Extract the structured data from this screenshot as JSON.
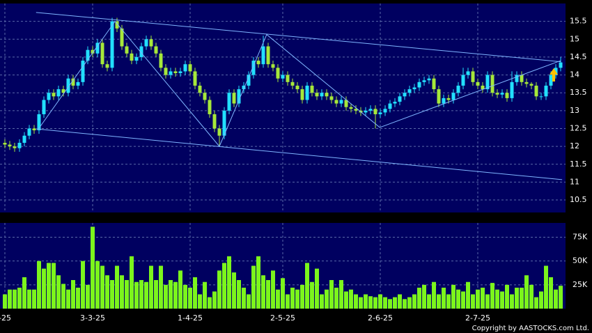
{
  "chart_data": [
    {
      "type": "candlestick",
      "ylim": [
        10.15,
        16.0
      ],
      "yticks": [
        10.5,
        11,
        11.5,
        12,
        12.5,
        13,
        13.5,
        14,
        14.5,
        15,
        15.5
      ],
      "xlim": [
        -1,
        115
      ],
      "grid": true,
      "up_color": "#22e0ff",
      "down_color": "#a6e83a",
      "line_color": "#7fb6ff",
      "open": [
        12.1,
        12.05,
        12.0,
        11.95,
        12.1,
        12.3,
        12.5,
        12.45,
        12.9,
        13.3,
        13.5,
        13.4,
        13.6,
        13.5,
        13.9,
        13.7,
        13.8,
        14.4,
        14.7,
        14.6,
        14.9,
        14.3,
        14.2,
        15.5,
        15.3,
        14.8,
        14.6,
        14.4,
        14.5,
        14.8,
        15.0,
        14.8,
        14.6,
        14.2,
        14.0,
        14.1,
        14.05,
        14.1,
        14.3,
        14.1,
        13.7,
        13.5,
        13.3,
        12.9,
        12.5,
        12.3,
        13.0,
        13.5,
        13.2,
        13.6,
        13.7,
        14.0,
        14.4,
        14.3,
        14.8,
        14.3,
        14.2,
        13.9,
        14.0,
        13.8,
        13.7,
        13.6,
        13.3,
        13.7,
        13.5,
        13.4,
        13.5,
        13.4,
        13.3,
        13.2,
        13.3,
        13.1,
        13.05,
        13.0,
        12.95,
        13.0,
        13.05,
        12.9,
        12.95,
        13.05,
        13.2,
        13.25,
        13.4,
        13.5,
        13.6,
        13.65,
        13.8,
        13.85,
        13.9,
        13.6,
        13.2,
        13.35,
        13.3,
        13.5,
        13.7,
        14.0,
        14.1,
        13.8,
        13.7,
        13.6,
        14.0,
        13.5,
        13.45,
        13.5,
        13.35,
        13.8,
        14.0,
        13.8,
        13.75,
        13.7,
        13.4,
        13.4,
        13.7,
        14.0,
        14.2
      ],
      "high": [
        12.2,
        12.15,
        12.1,
        12.2,
        12.4,
        12.6,
        12.6,
        13.0,
        13.4,
        13.6,
        13.6,
        13.7,
        13.7,
        14.0,
        14.0,
        13.9,
        14.5,
        14.8,
        14.8,
        15.0,
        15.0,
        14.4,
        15.6,
        15.6,
        15.4,
        14.9,
        14.7,
        14.6,
        14.9,
        15.1,
        15.1,
        14.9,
        14.7,
        14.3,
        14.2,
        14.2,
        14.2,
        14.4,
        14.4,
        14.2,
        13.8,
        13.6,
        13.4,
        13.0,
        12.6,
        13.1,
        13.6,
        13.6,
        13.7,
        13.8,
        14.1,
        14.5,
        14.5,
        15.1,
        14.9,
        14.4,
        14.3,
        14.1,
        14.1,
        13.9,
        13.8,
        13.7,
        13.8,
        13.8,
        13.6,
        13.6,
        13.6,
        13.5,
        13.4,
        13.4,
        13.4,
        13.2,
        13.15,
        13.1,
        13.1,
        13.15,
        13.15,
        13.05,
        13.15,
        13.3,
        13.35,
        13.5,
        13.6,
        13.7,
        13.75,
        13.9,
        13.95,
        14.0,
        14.0,
        13.7,
        13.45,
        13.45,
        13.6,
        13.8,
        14.2,
        14.2,
        14.2,
        13.9,
        13.8,
        14.1,
        14.1,
        13.6,
        13.6,
        13.6,
        14.1,
        14.1,
        14.1,
        13.9,
        13.8,
        13.8,
        13.5,
        13.8,
        14.1,
        14.3,
        14.5
      ],
      "low": [
        11.95,
        11.9,
        11.85,
        11.85,
        12.0,
        12.2,
        12.35,
        12.35,
        12.8,
        13.2,
        13.3,
        13.3,
        13.4,
        13.4,
        13.6,
        13.6,
        13.7,
        14.3,
        14.5,
        14.5,
        14.2,
        14.1,
        14.1,
        15.2,
        14.7,
        14.5,
        14.3,
        14.3,
        14.4,
        14.7,
        14.7,
        14.5,
        14.1,
        13.9,
        13.9,
        13.95,
        13.95,
        14.0,
        14.0,
        13.6,
        13.4,
        13.2,
        12.8,
        12.4,
        12.0,
        12.2,
        12.9,
        13.1,
        13.1,
        13.5,
        13.6,
        13.9,
        14.2,
        14.2,
        14.2,
        14.1,
        13.8,
        13.8,
        13.7,
        13.6,
        13.5,
        13.2,
        13.2,
        13.4,
        13.3,
        13.3,
        13.3,
        13.2,
        13.1,
        13.1,
        13.0,
        12.95,
        12.9,
        12.85,
        12.85,
        12.9,
        12.5,
        12.8,
        12.85,
        12.95,
        13.1,
        13.15,
        13.3,
        13.4,
        13.5,
        13.55,
        13.7,
        13.75,
        13.5,
        13.1,
        13.1,
        13.2,
        13.2,
        13.4,
        13.6,
        13.9,
        13.7,
        13.6,
        13.5,
        13.5,
        13.4,
        13.35,
        13.35,
        13.25,
        13.25,
        13.7,
        13.7,
        13.65,
        13.6,
        13.3,
        13.3,
        13.3,
        13.6,
        13.9,
        14.1
      ],
      "close": [
        12.05,
        12.0,
        11.95,
        12.1,
        12.3,
        12.5,
        12.45,
        12.9,
        13.3,
        13.5,
        13.4,
        13.6,
        13.5,
        13.9,
        13.7,
        13.8,
        14.4,
        14.7,
        14.6,
        14.9,
        14.3,
        14.2,
        15.5,
        15.3,
        14.8,
        14.6,
        14.4,
        14.5,
        14.8,
        15.0,
        14.8,
        14.6,
        14.2,
        14.0,
        14.1,
        14.05,
        14.1,
        14.3,
        14.1,
        13.7,
        13.5,
        13.3,
        12.9,
        12.5,
        12.3,
        13.0,
        13.5,
        13.2,
        13.6,
        13.7,
        14.0,
        14.4,
        14.3,
        14.8,
        14.3,
        14.2,
        13.9,
        14.0,
        13.8,
        13.7,
        13.6,
        13.3,
        13.7,
        13.5,
        13.4,
        13.5,
        13.4,
        13.3,
        13.2,
        13.3,
        13.1,
        13.05,
        13.0,
        12.95,
        13.0,
        13.05,
        12.9,
        12.95,
        13.05,
        13.2,
        13.25,
        13.4,
        13.5,
        13.6,
        13.65,
        13.8,
        13.85,
        13.9,
        13.6,
        13.2,
        13.35,
        13.3,
        13.5,
        13.7,
        14.0,
        14.1,
        13.8,
        13.7,
        13.6,
        14.0,
        13.5,
        13.45,
        13.5,
        13.35,
        13.8,
        14.0,
        13.8,
        13.75,
        13.7,
        13.4,
        13.4,
        13.7,
        14.0,
        14.2,
        14.35
      ],
      "lines": [
        {
          "x": [
            6.4,
            114
          ],
          "y": [
            15.75,
            14.37
          ]
        },
        {
          "x": [
            6.4,
            114.3
          ],
          "y": [
            12.49,
            11.07
          ]
        },
        {
          "x": [
            6.9,
            22.6,
            44,
            53.7,
            76.9,
            114
          ],
          "y": [
            12.49,
            15.5,
            12.0,
            15.13,
            12.53,
            14.4
          ]
        }
      ]
    },
    {
      "type": "bar",
      "ylim": [
        0,
        90000
      ],
      "yticks": [
        {
          "value": 25000,
          "label": "25K"
        },
        {
          "value": 50000,
          "label": "50K"
        },
        {
          "value": 75000,
          "label": "75K"
        }
      ],
      "xlim": [
        -1,
        115
      ],
      "xticks": [
        {
          "value": 0,
          "label": "-25"
        },
        {
          "value": 18,
          "label": "3-3-25"
        },
        {
          "value": 38,
          "label": "1-4-25"
        },
        {
          "value": 57,
          "label": "2-5-25"
        },
        {
          "value": 77,
          "label": "2-6-25"
        },
        {
          "value": 97,
          "label": "2-7-25"
        }
      ],
      "grid": true,
      "color": "#7cf51c",
      "values": [
        15000,
        20000,
        20000,
        22000,
        33000,
        20000,
        20000,
        50000,
        42000,
        48000,
        48000,
        35000,
        26000,
        20000,
        30000,
        22000,
        50000,
        25000,
        86000,
        50000,
        45000,
        35000,
        30000,
        45000,
        35000,
        30000,
        55000,
        28000,
        30000,
        28000,
        45000,
        30000,
        45000,
        25000,
        30000,
        28000,
        40000,
        25000,
        22000,
        33000,
        15000,
        28000,
        12000,
        18000,
        40000,
        48000,
        55000,
        38000,
        30000,
        22000,
        15000,
        45000,
        55000,
        35000,
        30000,
        40000,
        20000,
        32000,
        15000,
        22000,
        20000,
        25000,
        48000,
        28000,
        42000,
        15000,
        20000,
        30000,
        22000,
        30000,
        18000,
        20000,
        15000,
        12000,
        15000,
        13000,
        12000,
        15000,
        12000,
        10000,
        12000,
        15000,
        10000,
        12000,
        15000,
        22000,
        25000,
        15000,
        28000,
        15000,
        22000,
        15000,
        25000,
        20000,
        18000,
        28000,
        15000,
        20000,
        22000,
        15000,
        27000,
        20000,
        18000,
        25000,
        15000,
        22000,
        22000,
        35000,
        25000,
        12000,
        18000,
        45000,
        33000,
        20000,
        24000
      ],
      "copyright": "Copyright by AASTOCKS.com Ltd."
    }
  ]
}
